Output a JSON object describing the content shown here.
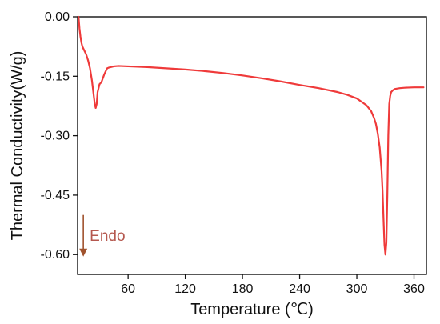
{
  "chart_data": {
    "type": "line",
    "title": "",
    "xlabel": "Temperature (℃)",
    "ylabel": "Thermal Conductivity(W/g)",
    "xlim": [
      7,
      373
    ],
    "ylim": [
      -0.65,
      0.0
    ],
    "x_ticks": [
      60,
      120,
      180,
      240,
      300,
      360
    ],
    "y_ticks": [
      0.0,
      -0.15,
      -0.3,
      -0.45,
      -0.6
    ],
    "x_tick_labels": [
      "60",
      "120",
      "180",
      "240",
      "300",
      "360"
    ],
    "y_tick_labels": [
      "0.00",
      "-0.15",
      "-0.30",
      "-0.45",
      "-0.60"
    ],
    "grid": false,
    "legend": "none",
    "series": [
      {
        "color": "#ef3a3a",
        "x": [
          8,
          9,
          10,
          11,
          12,
          14,
          16,
          18,
          20,
          22,
          24,
          25,
          26,
          27,
          28,
          30,
          32,
          35,
          38,
          40,
          45,
          50,
          60,
          80,
          100,
          120,
          140,
          160,
          180,
          200,
          220,
          240,
          260,
          280,
          290,
          300,
          310,
          315,
          318,
          320,
          322,
          324,
          326,
          327,
          328,
          329,
          330,
          331,
          332,
          333,
          334,
          335,
          336,
          338,
          340,
          345,
          350,
          360,
          370
        ],
        "y": [
          0.0,
          -0.03,
          -0.05,
          -0.065,
          -0.075,
          -0.085,
          -0.095,
          -0.11,
          -0.13,
          -0.16,
          -0.2,
          -0.22,
          -0.23,
          -0.22,
          -0.19,
          -0.17,
          -0.165,
          -0.145,
          -0.13,
          -0.128,
          -0.125,
          -0.124,
          -0.125,
          -0.127,
          -0.13,
          -0.133,
          -0.137,
          -0.142,
          -0.148,
          -0.155,
          -0.163,
          -0.172,
          -0.18,
          -0.19,
          -0.197,
          -0.206,
          -0.223,
          -0.238,
          -0.255,
          -0.27,
          -0.295,
          -0.33,
          -0.39,
          -0.44,
          -0.51,
          -0.575,
          -0.6,
          -0.57,
          -0.45,
          -0.3,
          -0.22,
          -0.2,
          -0.19,
          -0.185,
          -0.182,
          -0.18,
          -0.179,
          -0.178,
          -0.178
        ]
      }
    ],
    "annotations": [
      {
        "text": "Endo",
        "color": "#b5584f",
        "arrow_color": "#a0522d",
        "arrow_x": 13,
        "arrow_y_from": -0.5,
        "arrow_y_to": -0.605
      }
    ]
  }
}
